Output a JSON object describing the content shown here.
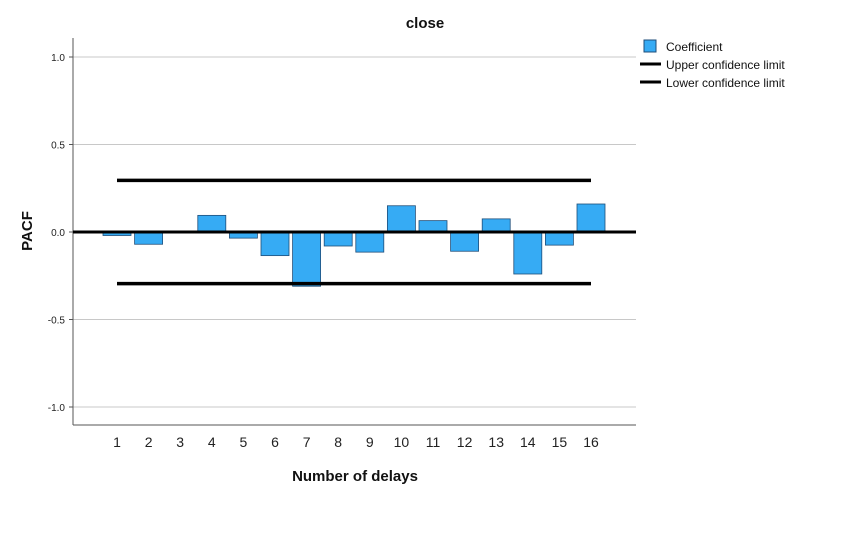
{
  "chart_data": {
    "type": "bar",
    "title": "close",
    "xlabel": "Number of delays",
    "ylabel": "PACF",
    "categories": [
      "1",
      "2",
      "3",
      "4",
      "5",
      "6",
      "7",
      "8",
      "9",
      "10",
      "11",
      "12",
      "13",
      "14",
      "15",
      "16"
    ],
    "series": [
      {
        "name": "Coefficient",
        "values": [
          -0.02,
          -0.07,
          0.005,
          0.095,
          -0.035,
          -0.135,
          -0.31,
          -0.08,
          -0.115,
          0.15,
          0.065,
          -0.11,
          0.075,
          -0.24,
          -0.075,
          0.16
        ]
      }
    ],
    "confidence_limits": {
      "upper": {
        "name": "Upper confidence limit",
        "value": 0.295
      },
      "lower": {
        "name": "Lower confidence limit",
        "value": -0.295
      }
    },
    "yticks": [
      "1.0",
      "0.5",
      "0.0",
      "-0.5",
      "-1.0"
    ],
    "ylim": [
      -1.1,
      1.1
    ],
    "grid": true,
    "legend_position": "top-right",
    "colors": {
      "bar": "#36abf4",
      "bar_edge": "#1f4e79",
      "limit": "#000000",
      "grid": "#c8c8c8"
    }
  }
}
